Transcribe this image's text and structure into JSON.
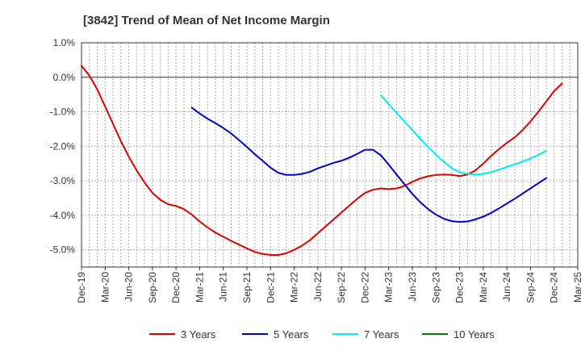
{
  "chart_data": {
    "type": "line",
    "title": "[3842]  Trend of Mean of Net Income Margin",
    "xlabel": "",
    "ylabel": "",
    "x_ticks": [
      "Dec-19",
      "Mar-20",
      "Jun-20",
      "Sep-20",
      "Dec-20",
      "Mar-21",
      "Jun-21",
      "Sep-21",
      "Dec-21",
      "Mar-22",
      "Jun-22",
      "Sep-22",
      "Dec-22",
      "Mar-23",
      "Jun-23",
      "Sep-23",
      "Dec-23",
      "Mar-24",
      "Jun-24",
      "Sep-24",
      "Dec-24",
      "Mar-25"
    ],
    "y_ticks": [
      "1.0%",
      "0.0%",
      "-1.0%",
      "-2.0%",
      "-3.0%",
      "-4.0%",
      "-5.0%"
    ],
    "y_tick_values": [
      1.0,
      0.0,
      -1.0,
      -2.0,
      -3.0,
      -4.0,
      -5.0
    ],
    "ylim": [
      -5.5,
      1.0
    ],
    "grid": true,
    "legend_position": "bottom",
    "series": [
      {
        "name": "3 Years",
        "color": "#dd0000",
        "points": [
          [
            "Dec-19",
            0.33
          ],
          [
            "Jan-20",
            0.05
          ],
          [
            "Feb-20",
            -0.35
          ],
          [
            "Mar-20",
            -0.85
          ],
          [
            "Apr-20",
            -1.35
          ],
          [
            "May-20",
            -1.85
          ],
          [
            "Jun-20",
            -2.3
          ],
          [
            "Jul-20",
            -2.7
          ],
          [
            "Aug-20",
            -3.05
          ],
          [
            "Sep-20",
            -3.35
          ],
          [
            "Oct-20",
            -3.55
          ],
          [
            "Nov-20",
            -3.68
          ],
          [
            "Dec-20",
            -3.73
          ],
          [
            "Jan-21",
            -3.82
          ],
          [
            "Feb-21",
            -3.98
          ],
          [
            "Mar-21",
            -4.18
          ],
          [
            "Apr-21",
            -4.35
          ],
          [
            "May-21",
            -4.5
          ],
          [
            "Jun-21",
            -4.62
          ],
          [
            "Jul-21",
            -4.74
          ],
          [
            "Aug-21",
            -4.85
          ],
          [
            "Sep-21",
            -4.96
          ],
          [
            "Oct-21",
            -5.06
          ],
          [
            "Nov-21",
            -5.12
          ],
          [
            "Dec-21",
            -5.15
          ],
          [
            "Jan-22",
            -5.15
          ],
          [
            "Feb-22",
            -5.1
          ],
          [
            "Mar-22",
            -5.0
          ],
          [
            "Apr-22",
            -4.88
          ],
          [
            "May-22",
            -4.72
          ],
          [
            "Jun-22",
            -4.52
          ],
          [
            "Jul-22",
            -4.32
          ],
          [
            "Aug-22",
            -4.12
          ],
          [
            "Sep-22",
            -3.92
          ],
          [
            "Oct-22",
            -3.72
          ],
          [
            "Nov-22",
            -3.52
          ],
          [
            "Dec-22",
            -3.35
          ],
          [
            "Jan-23",
            -3.26
          ],
          [
            "Feb-23",
            -3.22
          ],
          [
            "Mar-23",
            -3.24
          ],
          [
            "Apr-23",
            -3.22
          ],
          [
            "May-23",
            -3.15
          ],
          [
            "Jun-23",
            -3.03
          ],
          [
            "Jul-23",
            -2.93
          ],
          [
            "Aug-23",
            -2.87
          ],
          [
            "Sep-23",
            -2.83
          ],
          [
            "Oct-23",
            -2.82
          ],
          [
            "Nov-23",
            -2.83
          ],
          [
            "Dec-23",
            -2.86
          ],
          [
            "Jan-24",
            -2.82
          ],
          [
            "Feb-24",
            -2.7
          ],
          [
            "Mar-24",
            -2.5
          ],
          [
            "Apr-24",
            -2.28
          ],
          [
            "May-24",
            -2.08
          ],
          [
            "Jun-24",
            -1.9
          ],
          [
            "Jul-24",
            -1.74
          ],
          [
            "Aug-24",
            -1.53
          ],
          [
            "Sep-24",
            -1.28
          ],
          [
            "Oct-24",
            -1.0
          ],
          [
            "Nov-24",
            -0.7
          ],
          [
            "Dec-24",
            -0.4
          ],
          [
            "Jan-25",
            -0.18
          ]
        ]
      },
      {
        "name": "5 Years",
        "color": "#0000cc",
        "points": [
          [
            "Feb-21",
            -0.88
          ],
          [
            "Mar-21",
            -1.05
          ],
          [
            "Apr-21",
            -1.2
          ],
          [
            "May-21",
            -1.33
          ],
          [
            "Jun-21",
            -1.47
          ],
          [
            "Jul-21",
            -1.63
          ],
          [
            "Aug-21",
            -1.82
          ],
          [
            "Sep-21",
            -2.02
          ],
          [
            "Oct-21",
            -2.23
          ],
          [
            "Nov-21",
            -2.42
          ],
          [
            "Dec-21",
            -2.62
          ],
          [
            "Jan-22",
            -2.77
          ],
          [
            "Feb-22",
            -2.83
          ],
          [
            "Mar-22",
            -2.83
          ],
          [
            "Apr-22",
            -2.8
          ],
          [
            "May-22",
            -2.74
          ],
          [
            "Jun-22",
            -2.64
          ],
          [
            "Jul-22",
            -2.56
          ],
          [
            "Aug-22",
            -2.48
          ],
          [
            "Sep-22",
            -2.42
          ],
          [
            "Oct-22",
            -2.33
          ],
          [
            "Nov-22",
            -2.22
          ],
          [
            "Dec-22",
            -2.1
          ],
          [
            "Jan-23",
            -2.1
          ],
          [
            "Feb-23",
            -2.26
          ],
          [
            "Mar-23",
            -2.53
          ],
          [
            "Apr-23",
            -2.82
          ],
          [
            "May-23",
            -3.1
          ],
          [
            "Jun-23",
            -3.38
          ],
          [
            "Jul-23",
            -3.62
          ],
          [
            "Aug-23",
            -3.82
          ],
          [
            "Sep-23",
            -3.98
          ],
          [
            "Oct-23",
            -4.1
          ],
          [
            "Nov-23",
            -4.17
          ],
          [
            "Dec-23",
            -4.19
          ],
          [
            "Jan-24",
            -4.18
          ],
          [
            "Feb-24",
            -4.12
          ],
          [
            "Mar-24",
            -4.04
          ],
          [
            "Apr-24",
            -3.93
          ],
          [
            "May-24",
            -3.8
          ],
          [
            "Jun-24",
            -3.66
          ],
          [
            "Jul-24",
            -3.52
          ],
          [
            "Aug-24",
            -3.37
          ],
          [
            "Sep-24",
            -3.22
          ],
          [
            "Oct-24",
            -3.07
          ],
          [
            "Nov-24",
            -2.92
          ]
        ]
      },
      {
        "name": "7 Years",
        "color": "#00eeee",
        "points": [
          [
            "Feb-23",
            -0.52
          ],
          [
            "Mar-23",
            -0.78
          ],
          [
            "Apr-23",
            -1.03
          ],
          [
            "May-23",
            -1.28
          ],
          [
            "Jun-23",
            -1.53
          ],
          [
            "Jul-23",
            -1.78
          ],
          [
            "Aug-23",
            -2.02
          ],
          [
            "Sep-23",
            -2.24
          ],
          [
            "Oct-23",
            -2.45
          ],
          [
            "Nov-23",
            -2.63
          ],
          [
            "Dec-23",
            -2.75
          ],
          [
            "Jan-24",
            -2.8
          ],
          [
            "Feb-24",
            -2.82
          ],
          [
            "Mar-24",
            -2.8
          ],
          [
            "Apr-24",
            -2.75
          ],
          [
            "May-24",
            -2.68
          ],
          [
            "Jun-24",
            -2.6
          ],
          [
            "Jul-24",
            -2.52
          ],
          [
            "Aug-24",
            -2.44
          ],
          [
            "Sep-24",
            -2.35
          ],
          [
            "Oct-24",
            -2.25
          ],
          [
            "Nov-24",
            -2.13
          ]
        ]
      },
      {
        "name": "10 Years",
        "color": "#008000",
        "points": []
      }
    ]
  }
}
